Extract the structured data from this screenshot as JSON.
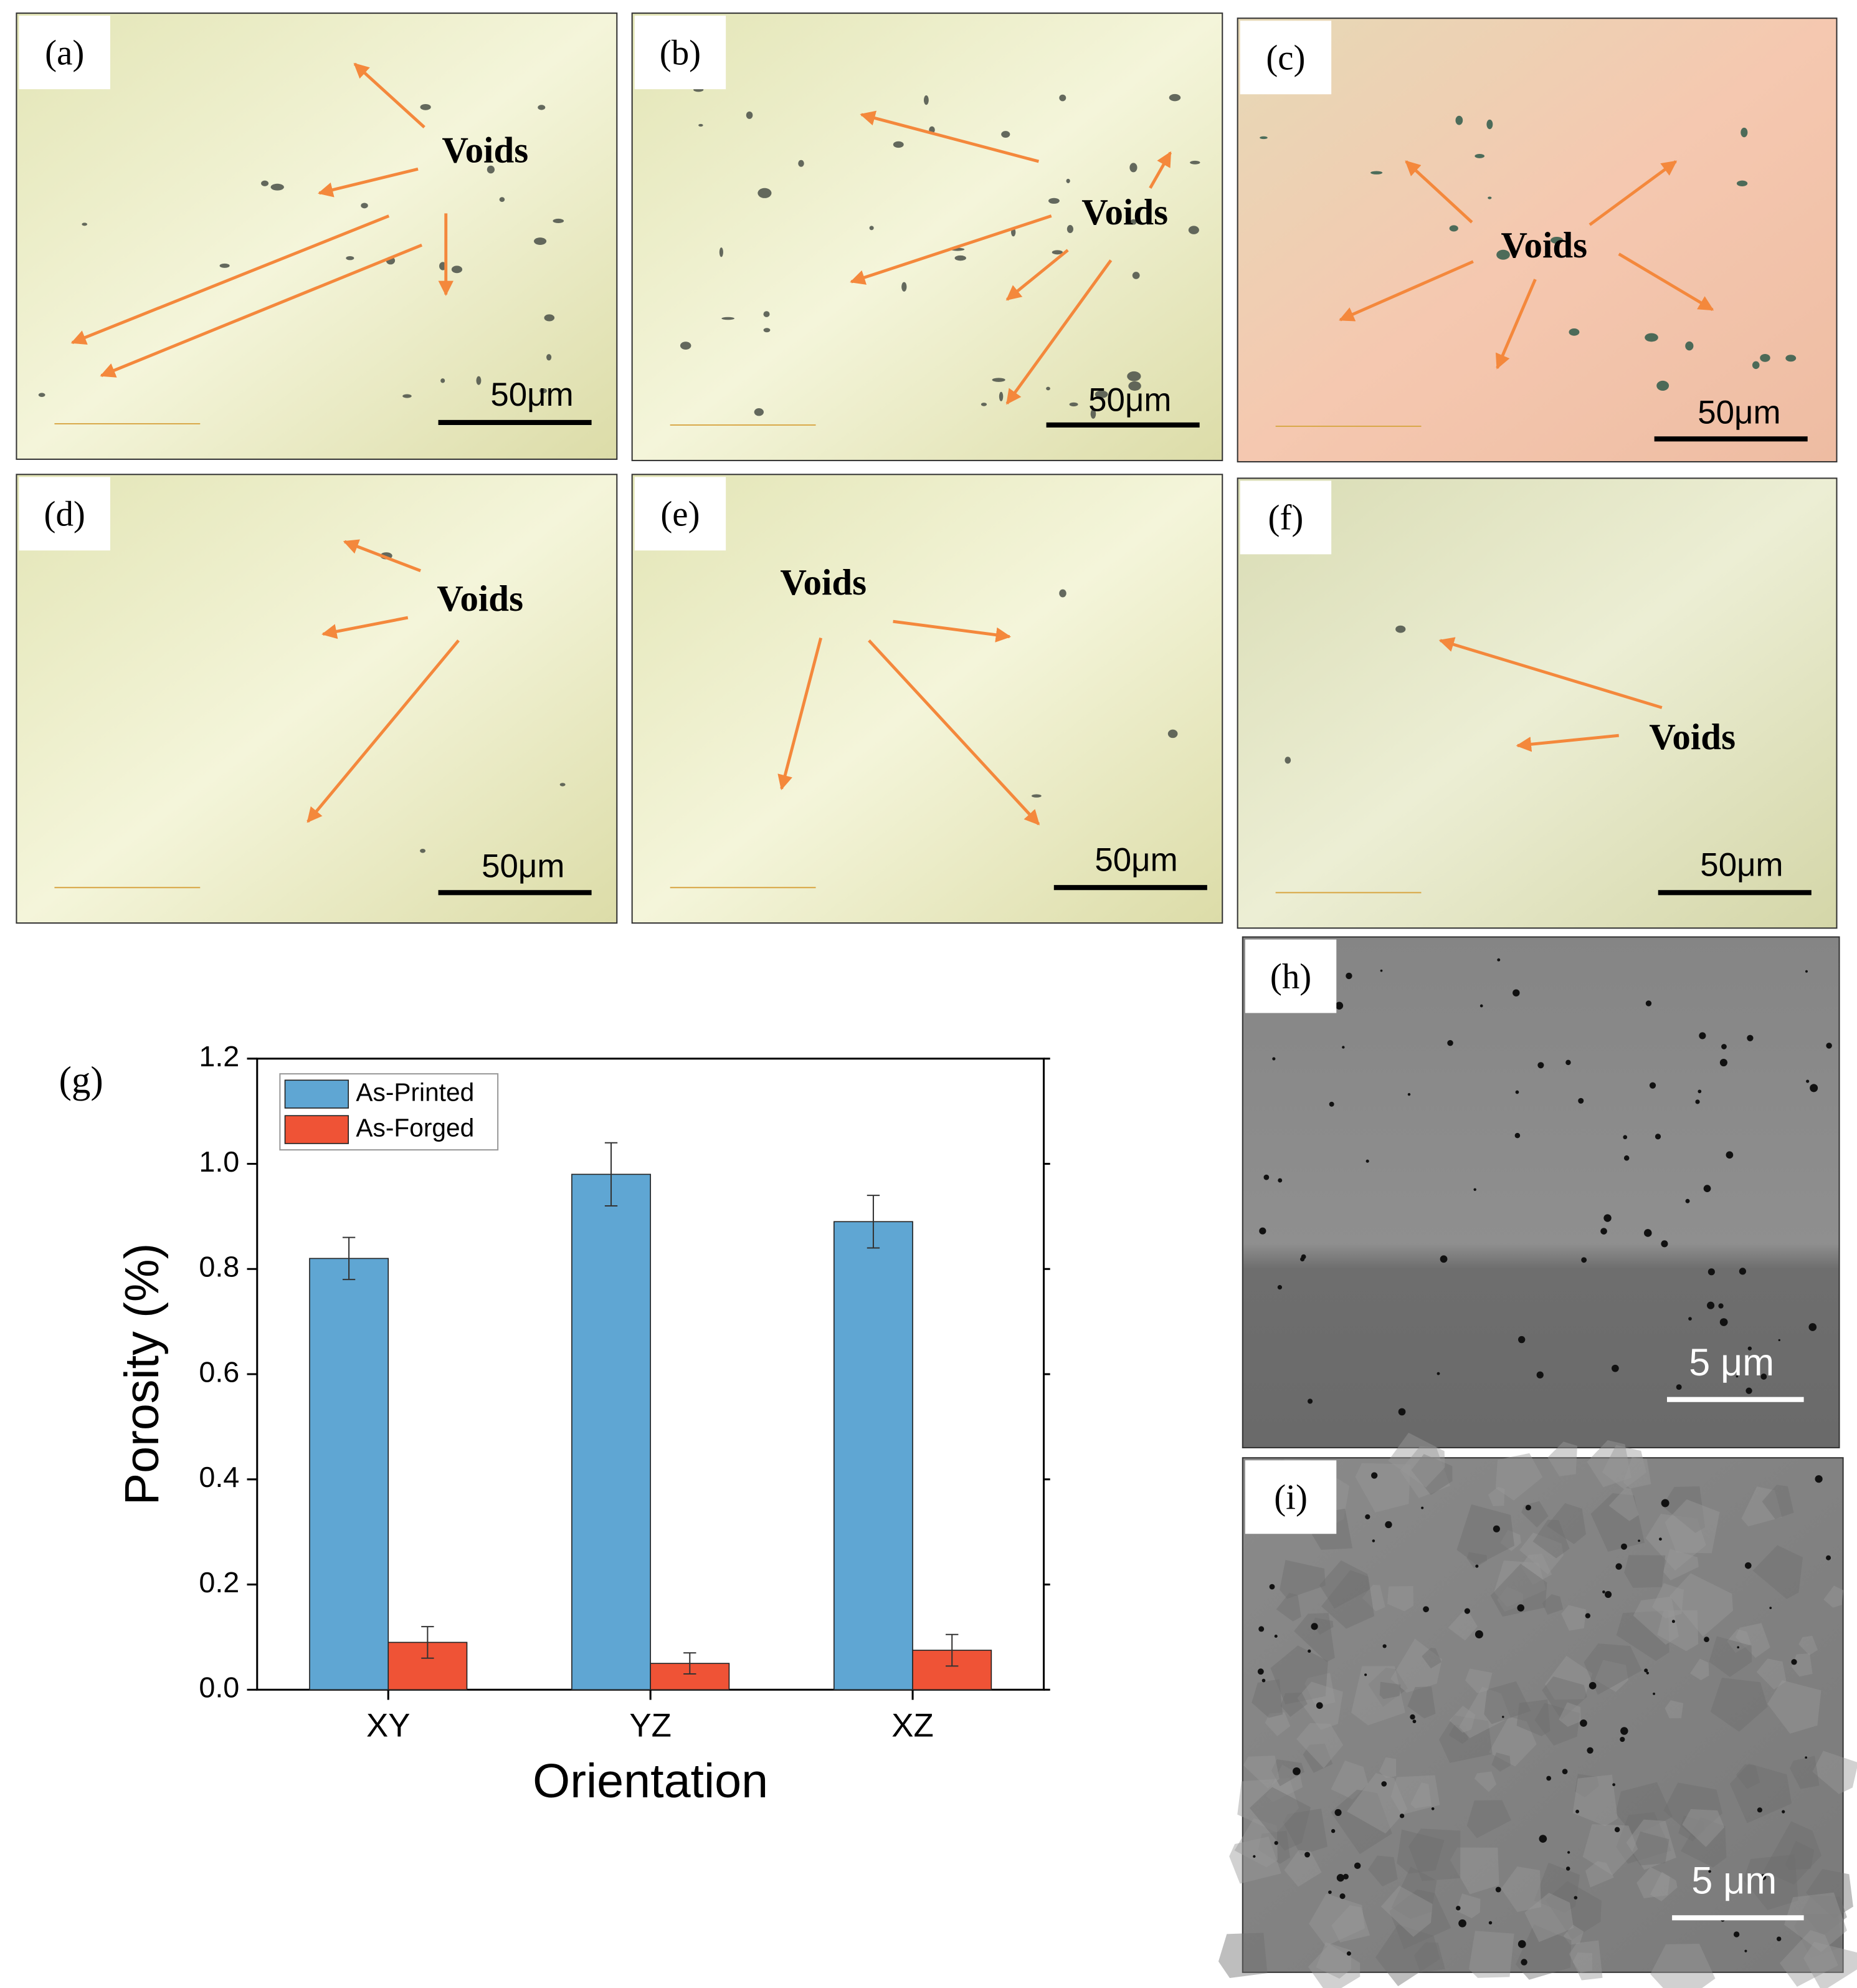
{
  "panels": [
    {
      "label": "(a)",
      "annotation": "Voids",
      "scale_bar": "50μm"
    },
    {
      "label": "(b)",
      "annotation": "Voids",
      "scale_bar": "50μm"
    },
    {
      "label": "(c)",
      "annotation": "Voids",
      "scale_bar": "50μm"
    },
    {
      "label": "(d)",
      "annotation": "Voids",
      "scale_bar": "50μm"
    },
    {
      "label": "(e)",
      "annotation": "Voids",
      "scale_bar": "50μm"
    },
    {
      "label": "(f)",
      "annotation": "Voids",
      "scale_bar": "50μm"
    },
    {
      "label": "(h)",
      "scale_bar": "5 μm"
    },
    {
      "label": "(i)",
      "scale_bar": "5 μm"
    }
  ],
  "chart_data": {
    "type": "bar",
    "panel_label": "(g)",
    "x_label": "Orientation",
    "y_label": "Porosity (%)",
    "categories": [
      "XY",
      "YZ",
      "XZ"
    ],
    "series": [
      {
        "name": "As-Printed",
        "color": "#5fa6d3",
        "values": [
          0.82,
          0.98,
          0.89
        ],
        "errors": [
          0.04,
          0.06,
          0.05
        ]
      },
      {
        "name": "As-Forged",
        "color": "#ef5336",
        "values": [
          0.09,
          0.05,
          0.075
        ],
        "errors": [
          0.03,
          0.02,
          0.03
        ]
      }
    ],
    "ylim": [
      0,
      1.2
    ],
    "yticks": [
      {
        "value": 0,
        "label": "0.0"
      },
      0.2,
      0.4,
      0.6,
      0.8,
      {
        "value": 1,
        "label": "1.0"
      },
      1.2
    ],
    "legend": "top-left"
  }
}
